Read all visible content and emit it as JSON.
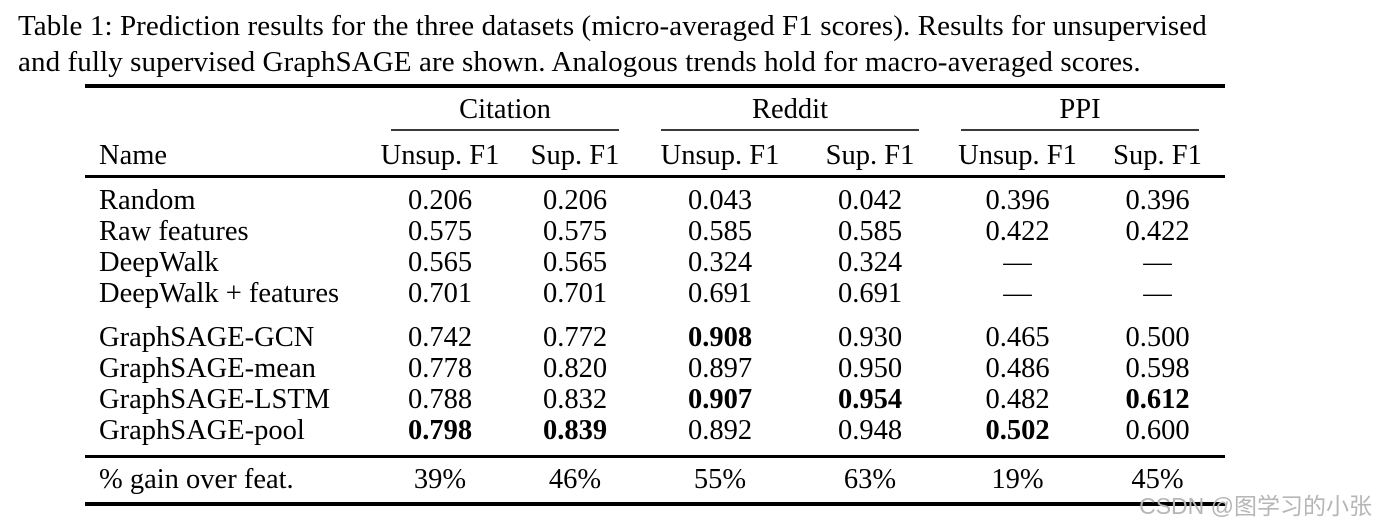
{
  "caption": {
    "line1": "Table 1: Prediction results for the three datasets (micro-averaged F1 scores). Results for unsupervised",
    "line2": "and fully supervised GraphSAGE are shown. Analogous trends hold for macro-averaged scores."
  },
  "table": {
    "name_header": "Name",
    "groups": [
      {
        "label": "Citation"
      },
      {
        "label": "Reddit"
      },
      {
        "label": "PPI"
      }
    ],
    "sub_headers": [
      "Unsup. F1",
      "Sup. F1",
      "Unsup. F1",
      "Sup. F1",
      "Unsup. F1",
      "Sup. F1"
    ],
    "rows": [
      {
        "name": "Random",
        "group_start": false,
        "cells": [
          {
            "t": "0.206",
            "bold": false
          },
          {
            "t": "0.206",
            "bold": false
          },
          {
            "t": "0.043",
            "bold": false
          },
          {
            "t": "0.042",
            "bold": false
          },
          {
            "t": "0.396",
            "bold": false
          },
          {
            "t": "0.396",
            "bold": false
          }
        ]
      },
      {
        "name": "Raw features",
        "group_start": false,
        "cells": [
          {
            "t": "0.575",
            "bold": false
          },
          {
            "t": "0.575",
            "bold": false
          },
          {
            "t": "0.585",
            "bold": false
          },
          {
            "t": "0.585",
            "bold": false
          },
          {
            "t": "0.422",
            "bold": false
          },
          {
            "t": "0.422",
            "bold": false
          }
        ]
      },
      {
        "name": "DeepWalk",
        "group_start": false,
        "cells": [
          {
            "t": "0.565",
            "bold": false
          },
          {
            "t": "0.565",
            "bold": false
          },
          {
            "t": "0.324",
            "bold": false
          },
          {
            "t": "0.324",
            "bold": false
          },
          {
            "t": "—",
            "bold": false
          },
          {
            "t": "—",
            "bold": false
          }
        ]
      },
      {
        "name": "DeepWalk + features",
        "group_start": false,
        "cells": [
          {
            "t": "0.701",
            "bold": false
          },
          {
            "t": "0.701",
            "bold": false
          },
          {
            "t": "0.691",
            "bold": false
          },
          {
            "t": "0.691",
            "bold": false
          },
          {
            "t": "—",
            "bold": false
          },
          {
            "t": "—",
            "bold": false
          }
        ]
      },
      {
        "name": "GraphSAGE-GCN",
        "group_start": true,
        "cells": [
          {
            "t": "0.742",
            "bold": false
          },
          {
            "t": "0.772",
            "bold": false
          },
          {
            "t": "0.908",
            "bold": true
          },
          {
            "t": "0.930",
            "bold": false
          },
          {
            "t": "0.465",
            "bold": false
          },
          {
            "t": "0.500",
            "bold": false
          }
        ]
      },
      {
        "name": "GraphSAGE-mean",
        "group_start": false,
        "cells": [
          {
            "t": "0.778",
            "bold": false
          },
          {
            "t": "0.820",
            "bold": false
          },
          {
            "t": "0.897",
            "bold": false
          },
          {
            "t": "0.950",
            "bold": false
          },
          {
            "t": "0.486",
            "bold": false
          },
          {
            "t": "0.598",
            "bold": false
          }
        ]
      },
      {
        "name": "GraphSAGE-LSTM",
        "group_start": false,
        "cells": [
          {
            "t": "0.788",
            "bold": false
          },
          {
            "t": "0.832",
            "bold": false
          },
          {
            "t": "0.907",
            "bold": true
          },
          {
            "t": "0.954",
            "bold": true
          },
          {
            "t": "0.482",
            "bold": false
          },
          {
            "t": "0.612",
            "bold": true
          }
        ]
      },
      {
        "name": "GraphSAGE-pool",
        "group_start": false,
        "cells": [
          {
            "t": "0.798",
            "bold": true
          },
          {
            "t": "0.839",
            "bold": true
          },
          {
            "t": "0.892",
            "bold": false
          },
          {
            "t": "0.948",
            "bold": false
          },
          {
            "t": "0.502",
            "bold": true
          },
          {
            "t": "0.600",
            "bold": false
          }
        ]
      }
    ],
    "footer": {
      "label": "% gain over feat.",
      "values": [
        "39%",
        "46%",
        "55%",
        "63%",
        "19%",
        "45%"
      ]
    }
  },
  "watermark": {
    "text": "CSDN @图学习的小张",
    "color": "#b6b6b6"
  }
}
